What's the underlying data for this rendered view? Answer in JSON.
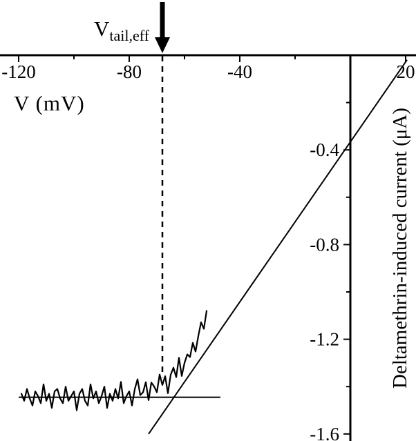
{
  "figure": {
    "background": "#ffffff",
    "ink_color": "#000000"
  },
  "chart_data": {
    "type": "line",
    "title": "",
    "xlabel": "V (mV)",
    "ylabel": "Deltamethrin-induced current (μA)",
    "x_axis_position": "top",
    "y_axis_position": "right",
    "grid": false,
    "legend": false,
    "xlim": [
      -120,
      20
    ],
    "ylim": [
      -1.6,
      0
    ],
    "x_tick_labels": [
      -120,
      -80,
      -40,
      20
    ],
    "x_ticks_major": [
      -120,
      -80,
      -40,
      0,
      20
    ],
    "x_ticks_minor": [
      -100,
      -60,
      -20
    ],
    "y_tick_labels": [
      -0.4,
      -0.8,
      -1.2,
      -1.6
    ],
    "y_ticks_major": [
      -0.4,
      -0.8,
      -1.2,
      -1.6
    ],
    "y_ticks_minor": [
      -0.2,
      -0.6,
      -1.0,
      -1.4
    ],
    "annotation": {
      "label_main": "V",
      "label_sub": "tail,eff",
      "arrow_x": -68,
      "dashed_line": {
        "x": -68,
        "i_top": 0,
        "i_bottom": -1.36
      }
    },
    "baseline_line": {
      "i": -1.445,
      "x_start": -120,
      "x_end": -47
    },
    "fit_line": {
      "x1": -73,
      "i1": -1.6,
      "x2": 20.5,
      "i2": -0.02
    },
    "series": [
      {
        "name": "deltamethrin-induced current trace",
        "x": [
          -119,
          -118,
          -117,
          -116,
          -115,
          -114,
          -113,
          -112,
          -111,
          -110,
          -109,
          -108,
          -107,
          -106,
          -105,
          -104,
          -103,
          -102,
          -101,
          -100,
          -99,
          -98,
          -97,
          -96,
          -95,
          -94,
          -93,
          -92,
          -91,
          -90,
          -89,
          -88,
          -87,
          -86,
          -85,
          -84,
          -83,
          -82,
          -81,
          -80,
          -79,
          -78,
          -77,
          -76,
          -75,
          -74,
          -73,
          -72,
          -71,
          -70,
          -69,
          -68,
          -67,
          -66,
          -65,
          -64,
          -63,
          -62,
          -61,
          -60,
          -59,
          -58,
          -57,
          -56,
          -55,
          -54,
          -53,
          -52
        ],
        "i": [
          -1.43,
          -1.46,
          -1.41,
          -1.45,
          -1.48,
          -1.42,
          -1.44,
          -1.47,
          -1.39,
          -1.46,
          -1.43,
          -1.49,
          -1.42,
          -1.41,
          -1.45,
          -1.47,
          -1.4,
          -1.46,
          -1.44,
          -1.42,
          -1.5,
          -1.43,
          -1.41,
          -1.46,
          -1.48,
          -1.39,
          -1.45,
          -1.42,
          -1.47,
          -1.44,
          -1.4,
          -1.49,
          -1.43,
          -1.46,
          -1.41,
          -1.45,
          -1.38,
          -1.47,
          -1.44,
          -1.42,
          -1.48,
          -1.411,
          -1.369,
          -1.436,
          -1.424,
          -1.381,
          -1.457,
          -1.383,
          -1.399,
          -1.424,
          -1.349,
          -1.393,
          -1.356,
          -1.428,
          -1.35,
          -1.32,
          -1.36,
          -1.278,
          -1.355,
          -1.3,
          -1.264,
          -1.275,
          -1.215,
          -1.252,
          -1.186,
          -1.128,
          -1.156,
          -1.08
        ]
      }
    ]
  }
}
